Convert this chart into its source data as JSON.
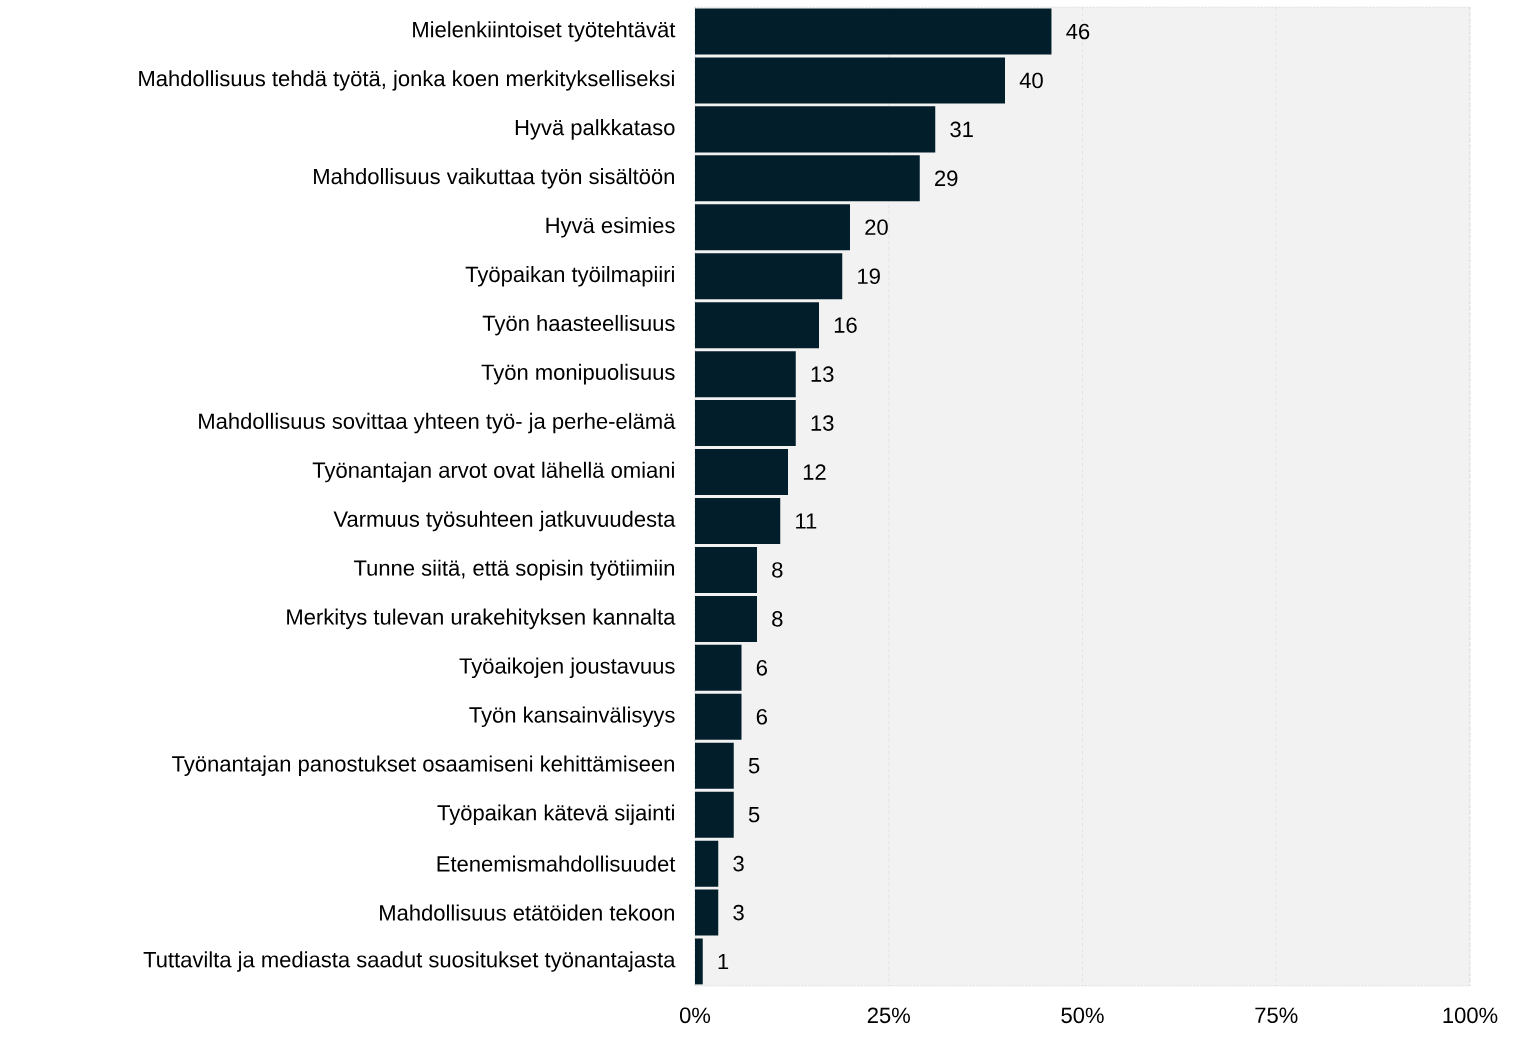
{
  "chart_data": {
    "type": "bar",
    "orientation": "horizontal",
    "categories": [
      "Mielenkiintoiset työtehtävät",
      "Mahdollisuus tehdä työtä, jonka koen merkitykselliseksi",
      "Hyvä palkkataso",
      "Mahdollisuus vaikuttaa työn sisältöön",
      "Hyvä esimies",
      "Työpaikan työilmapiiri",
      "Työn haasteellisuus",
      "Työn monipuolisuus",
      "Mahdollisuus sovittaa yhteen työ- ja perhe-elämä",
      "Työnantajan arvot ovat lähellä omiani",
      "Varmuus työsuhteen jatkuvuudesta",
      "Tunne siitä, että sopisin työtiimiin",
      "Merkitys tulevan urakehityksen kannalta",
      "Työaikojen joustavuus",
      "Työn kansainvälisyys",
      "Työnantajan panostukset osaamiseni kehittämiseen",
      "Työpaikan kätevä sijainti",
      "Etenemismahdollisuudet",
      "Mahdollisuus etätöiden tekoon",
      "Tuttavilta ja mediasta saadut suositukset työnantajasta"
    ],
    "values": [
      46,
      40,
      31,
      29,
      20,
      19,
      16,
      13,
      13,
      12,
      11,
      8,
      8,
      6,
      6,
      5,
      5,
      3,
      3,
      1
    ],
    "color": "#021e2b",
    "data_labels": true,
    "grid": "x",
    "xlim": [
      0,
      100
    ],
    "xticks": [
      {
        "value": 0,
        "label": "0%"
      },
      {
        "value": 25,
        "label": "25%"
      },
      {
        "value": 50,
        "label": "50%"
      },
      {
        "value": 75,
        "label": "75%"
      },
      {
        "value": 100,
        "label": "100%"
      }
    ]
  }
}
